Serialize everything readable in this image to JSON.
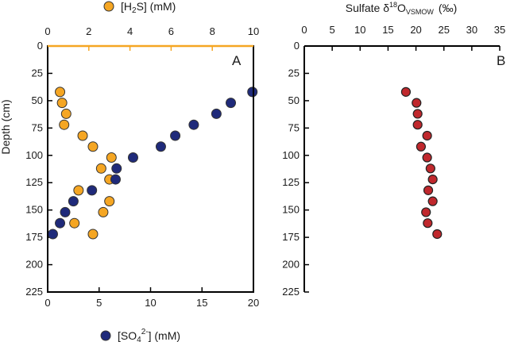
{
  "chart_data": [
    {
      "type": "scatter",
      "panel_label": "A",
      "y_axis": {
        "label": "Depth (cm)",
        "range": [
          0,
          225
        ],
        "inverted": true,
        "ticks": [
          0,
          25,
          50,
          75,
          100,
          125,
          150,
          175,
          200,
          225
        ]
      },
      "x_axes": [
        {
          "position": "top",
          "range": [
            0,
            10
          ],
          "ticks": [
            0,
            2,
            4,
            6,
            8,
            10
          ],
          "color": "#f5a623",
          "label_legend": "H2S (mM)"
        },
        {
          "position": "bottom",
          "range": [
            0,
            20
          ],
          "ticks": [
            0,
            5,
            10,
            15,
            20
          ],
          "color": "#000000",
          "label_legend": "SO42- (mM)"
        }
      ],
      "legend": {
        "placement": "top and bottom",
        "h2s": {
          "open": "[H",
          "sub": "2",
          "close": "S] (mM)"
        },
        "so4": {
          "open": "[SO",
          "sub": "4",
          "sup": "2-",
          "close": "] (mM)"
        }
      },
      "series": [
        {
          "key": "h2s",
          "axis": "top",
          "color": "#f5a623",
          "points": [
            {
              "x": 0.6,
              "y": 42
            },
            {
              "x": 0.7,
              "y": 52
            },
            {
              "x": 0.9,
              "y": 62
            },
            {
              "x": 0.8,
              "y": 72
            },
            {
              "x": 1.7,
              "y": 82
            },
            {
              "x": 2.2,
              "y": 92
            },
            {
              "x": 3.1,
              "y": 102
            },
            {
              "x": 2.6,
              "y": 112
            },
            {
              "x": 3.0,
              "y": 122
            },
            {
              "x": 1.5,
              "y": 132
            },
            {
              "x": 3.0,
              "y": 142
            },
            {
              "x": 2.7,
              "y": 152
            },
            {
              "x": 1.3,
              "y": 162
            },
            {
              "x": 2.2,
              "y": 172
            }
          ]
        },
        {
          "key": "so4",
          "axis": "bottom",
          "color": "#1f2a7a",
          "points": [
            {
              "x": 19.9,
              "y": 42
            },
            {
              "x": 17.8,
              "y": 52
            },
            {
              "x": 16.4,
              "y": 62
            },
            {
              "x": 14.2,
              "y": 72
            },
            {
              "x": 12.4,
              "y": 82
            },
            {
              "x": 11.0,
              "y": 92
            },
            {
              "x": 8.3,
              "y": 102
            },
            {
              "x": 6.7,
              "y": 112
            },
            {
              "x": 6.6,
              "y": 122
            },
            {
              "x": 4.3,
              "y": 132
            },
            {
              "x": 2.5,
              "y": 142
            },
            {
              "x": 1.7,
              "y": 152
            },
            {
              "x": 1.2,
              "y": 162
            },
            {
              "x": 0.5,
              "y": 172
            }
          ]
        }
      ]
    },
    {
      "type": "scatter",
      "panel_label": "B",
      "title": {
        "main": "Sulfate δ",
        "sup": "18",
        "mid": "O",
        "sub": "VSMOW",
        "end": "(‰)"
      },
      "x_axis": {
        "position": "top",
        "range": [
          0,
          35
        ],
        "ticks": [
          0,
          5,
          10,
          15,
          20,
          25,
          30,
          35
        ]
      },
      "y_axis": {
        "range": [
          0,
          225
        ],
        "inverted": true,
        "ticks": [
          0,
          25,
          50,
          75,
          100,
          125,
          150,
          175,
          200,
          225
        ]
      },
      "series": [
        {
          "key": "d18o",
          "color": "#c0282d",
          "points": [
            {
              "x": 18.2,
              "y": 42
            },
            {
              "x": 20.1,
              "y": 52
            },
            {
              "x": 20.3,
              "y": 62
            },
            {
              "x": 20.3,
              "y": 72
            },
            {
              "x": 22.0,
              "y": 82
            },
            {
              "x": 20.9,
              "y": 92
            },
            {
              "x": 22.0,
              "y": 102
            },
            {
              "x": 22.6,
              "y": 112
            },
            {
              "x": 23.0,
              "y": 122
            },
            {
              "x": 22.2,
              "y": 132
            },
            {
              "x": 23.0,
              "y": 142
            },
            {
              "x": 21.8,
              "y": 152
            },
            {
              "x": 22.1,
              "y": 162
            },
            {
              "x": 23.8,
              "y": 172
            }
          ]
        }
      ]
    }
  ]
}
